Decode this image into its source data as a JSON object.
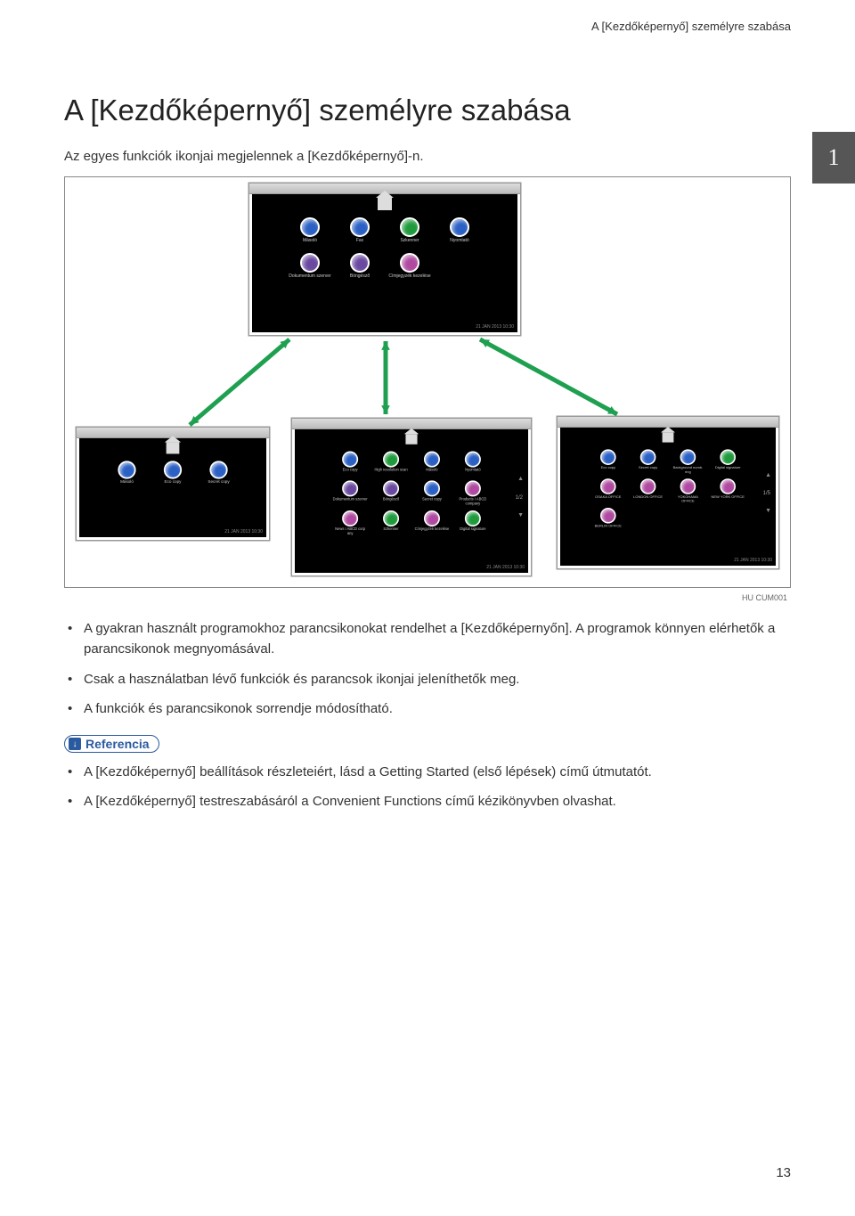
{
  "header": {
    "running_title": "A [Kezdőképernyő] személyre szabása"
  },
  "chapter": {
    "number": "1"
  },
  "title": "A [Kezdőképernyő] személyre szabása",
  "intro": "Az egyes funkciók ikonjai megjelennek a [Kezdőképernyő]-n.",
  "figure": {
    "code": "HU CUM001",
    "arrow_color": "#1fa050",
    "screens": {
      "top": {
        "icons": [
          {
            "label": "Másoló",
            "color": "#2b60c4"
          },
          {
            "label": "Fax",
            "color": "#2b60c4"
          },
          {
            "label": "Szkenner",
            "color": "#1f9b3c"
          },
          {
            "label": "Nyomtató",
            "color": "#2b60c4"
          },
          {
            "label": "Dokumentum szerver",
            "color": "#6a4aa0"
          },
          {
            "label": "Böngésző",
            "color": "#6a4aa0"
          },
          {
            "label": "Címjegyzék kezelése",
            "color": "#b04aa0"
          }
        ],
        "status": "21 JAN 2013  10:30"
      },
      "left": {
        "icons": [
          {
            "label": "Másoló",
            "color": "#2b60c4"
          },
          {
            "label": "Eco copy",
            "color": "#2b60c4"
          },
          {
            "label": "Secret copy",
            "color": "#2b60c4"
          }
        ],
        "status": "21 JAN 2013  10:30"
      },
      "center": {
        "icons": [
          {
            "label": "Eco copy",
            "color": "#2b60c4"
          },
          {
            "label": "High resolution scan",
            "color": "#1f9b3c"
          },
          {
            "label": "Másoló",
            "color": "#2b60c4"
          },
          {
            "label": "Nyomtató",
            "color": "#2b60c4"
          },
          {
            "label": "Dokumentum szerver",
            "color": "#6a4aa0"
          },
          {
            "label": "Böngésző",
            "color": "#6a4aa0"
          },
          {
            "label": "Secret copy",
            "color": "#2b60c4"
          },
          {
            "label": "Products I ABCD company",
            "color": "#b04aa0"
          },
          {
            "label": "News I ABCD corp any",
            "color": "#b04aa0"
          },
          {
            "label": "Szkenner",
            "color": "#1f9b3c"
          },
          {
            "label": "Címjegyzék kezelése",
            "color": "#b04aa0"
          },
          {
            "label": "Digital signature",
            "color": "#1f9b3c"
          }
        ],
        "pager": "1/2",
        "status": "21 JAN 2013  10:30"
      },
      "right": {
        "icons": [
          {
            "label": "Eco copy",
            "color": "#2b60c4"
          },
          {
            "label": "Secret copy",
            "color": "#2b60c4"
          },
          {
            "label": "Background numb. ring",
            "color": "#2b60c4"
          },
          {
            "label": "Digital signature",
            "color": "#1f9b3c"
          },
          {
            "label": "OSAKA OFFICE",
            "color": "#b04aa0"
          },
          {
            "label": "LONDON OFFICE",
            "color": "#b04aa0"
          },
          {
            "label": "YOKOHAMA OFFICE",
            "color": "#b04aa0"
          },
          {
            "label": "NEW YORK OFFICE",
            "color": "#b04aa0"
          },
          {
            "label": "BERLIN OFFICE",
            "color": "#b04aa0"
          }
        ],
        "pager": "1/5",
        "status": "21 JAN 2013  10:30"
      }
    }
  },
  "bullets_main": [
    "A gyakran használt programokhoz parancsikonokat rendelhet a [Kezdőképernyőn]. A programok könnyen elérhetők a parancsikonok megnyomásával.",
    "Csak a használatban lévő funkciók és parancsok ikonjai jeleníthetők meg.",
    "A funkciók és parancsikonok sorrendje módosítható."
  ],
  "reference_label": "Referencia",
  "bullets_ref": [
    "A [Kezdőképernyő] beállítások részleteiért, lásd a Getting Started (első lépések) című útmutatót.",
    "A [Kezdőképernyő] testreszabásáról a Convenient Functions című kézikönyvben olvashat."
  ],
  "page_number": "13"
}
